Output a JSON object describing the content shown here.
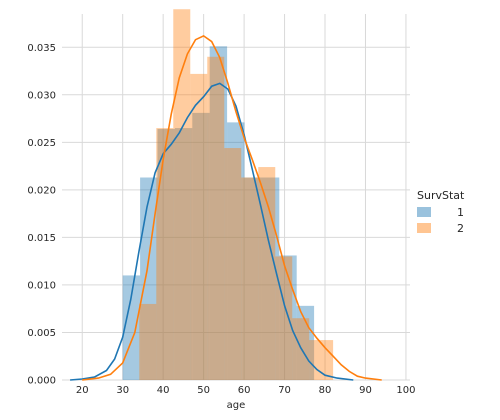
{
  "chart_data": {
    "type": "bar",
    "xlabel": "age",
    "ylabel": "",
    "xlim": [
      15,
      101
    ],
    "ylim": [
      0,
      0.0385
    ],
    "x_ticks": [
      "20",
      "30",
      "40",
      "50",
      "60",
      "70",
      "80",
      "90",
      "100"
    ],
    "y_ticks": [
      "0.000",
      "0.005",
      "0.010",
      "0.015",
      "0.020",
      "0.025",
      "0.030",
      "0.035"
    ],
    "grid": true,
    "legend": {
      "title": "SurvStat",
      "placement": "right",
      "entries": [
        "1",
        "2"
      ]
    },
    "series": [
      {
        "name": "1",
        "color": "#1f77b4",
        "histogram": [
          {
            "x0": 30.0,
            "x1": 34.3,
            "value": 0.011
          },
          {
            "x0": 34.3,
            "x1": 38.6,
            "value": 0.0213
          },
          {
            "x0": 38.6,
            "x1": 42.9,
            "value": 0.0264
          },
          {
            "x0": 42.9,
            "x1": 47.2,
            "value": 0.0265
          },
          {
            "x0": 47.2,
            "x1": 51.5,
            "value": 0.0281
          },
          {
            "x0": 51.5,
            "x1": 55.8,
            "value": 0.0351
          },
          {
            "x0": 55.8,
            "x1": 60.1,
            "value": 0.0271
          },
          {
            "x0": 60.1,
            "x1": 64.4,
            "value": 0.0213
          },
          {
            "x0": 64.4,
            "x1": 68.7,
            "value": 0.0213
          },
          {
            "x0": 68.7,
            "x1": 73.0,
            "value": 0.0131
          },
          {
            "x0": 73.0,
            "x1": 77.3,
            "value": 0.0078
          }
        ],
        "kde": [
          [
            17,
            0.0
          ],
          [
            20,
            0.0001
          ],
          [
            23,
            0.0003
          ],
          [
            26,
            0.001
          ],
          [
            28,
            0.0022
          ],
          [
            30,
            0.0045
          ],
          [
            32,
            0.0085
          ],
          [
            34,
            0.0135
          ],
          [
            36,
            0.0182
          ],
          [
            38,
            0.0218
          ],
          [
            40,
            0.0238
          ],
          [
            42,
            0.0248
          ],
          [
            44,
            0.026
          ],
          [
            46,
            0.0276
          ],
          [
            48,
            0.0289
          ],
          [
            50,
            0.0298
          ],
          [
            52,
            0.0309
          ],
          [
            54,
            0.0312
          ],
          [
            56,
            0.0306
          ],
          [
            58,
            0.0288
          ],
          [
            60,
            0.0258
          ],
          [
            62,
            0.0222
          ],
          [
            64,
            0.0185
          ],
          [
            66,
            0.0147
          ],
          [
            68,
            0.0112
          ],
          [
            70,
            0.0078
          ],
          [
            72,
            0.0052
          ],
          [
            74,
            0.0034
          ],
          [
            76,
            0.002
          ],
          [
            78,
            0.0011
          ],
          [
            80,
            0.0005
          ],
          [
            83,
            0.0002
          ],
          [
            87,
            0.0
          ]
        ]
      },
      {
        "name": "2",
        "color": "#ff7f0e",
        "histogram": [
          {
            "x0": 34.1,
            "x1": 38.3,
            "value": 0.008
          },
          {
            "x0": 38.3,
            "x1": 42.5,
            "value": 0.0265
          },
          {
            "x0": 42.5,
            "x1": 46.7,
            "value": 0.039
          },
          {
            "x0": 46.7,
            "x1": 50.9,
            "value": 0.0322
          },
          {
            "x0": 50.9,
            "x1": 55.1,
            "value": 0.034
          },
          {
            "x0": 55.1,
            "x1": 59.3,
            "value": 0.0244
          },
          {
            "x0": 59.3,
            "x1": 63.5,
            "value": 0.0213
          },
          {
            "x0": 63.5,
            "x1": 67.7,
            "value": 0.0224
          },
          {
            "x0": 67.7,
            "x1": 71.9,
            "value": 0.013
          },
          {
            "x0": 71.9,
            "x1": 76.1,
            "value": 0.0065
          },
          {
            "x0": 76.1,
            "x1": 82.0,
            "value": 0.0042
          }
        ],
        "kde": [
          [
            20,
            0.0
          ],
          [
            24,
            0.0002
          ],
          [
            27,
            0.0006
          ],
          [
            30,
            0.0018
          ],
          [
            33,
            0.005
          ],
          [
            36,
            0.0115
          ],
          [
            38,
            0.0175
          ],
          [
            40,
            0.0232
          ],
          [
            42,
            0.028
          ],
          [
            44,
            0.0318
          ],
          [
            46,
            0.0343
          ],
          [
            48,
            0.0358
          ],
          [
            50,
            0.0362
          ],
          [
            52,
            0.0356
          ],
          [
            54,
            0.0339
          ],
          [
            56,
            0.0312
          ],
          [
            58,
            0.0282
          ],
          [
            60,
            0.0255
          ],
          [
            62,
            0.0232
          ],
          [
            64,
            0.0208
          ],
          [
            66,
            0.0182
          ],
          [
            68,
            0.0152
          ],
          [
            70,
            0.012
          ],
          [
            72,
            0.0095
          ],
          [
            74,
            0.0072
          ],
          [
            76,
            0.0055
          ],
          [
            78,
            0.0044
          ],
          [
            80,
            0.0034
          ],
          [
            82,
            0.0025
          ],
          [
            84,
            0.0016
          ],
          [
            86,
            0.0009
          ],
          [
            88,
            0.0004
          ],
          [
            90,
            0.0002
          ],
          [
            94,
            0.0
          ]
        ]
      }
    ]
  }
}
